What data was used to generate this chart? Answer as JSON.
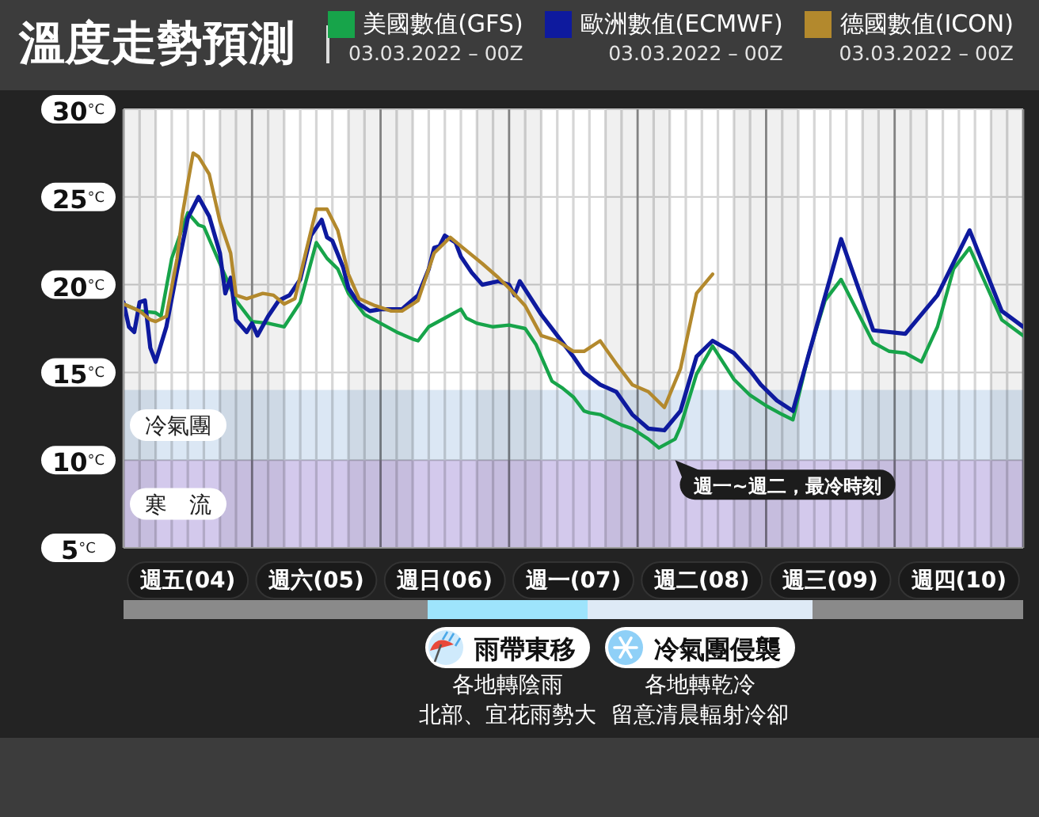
{
  "chart_data": {
    "type": "line",
    "title": "溫度走勢預測",
    "legend": "top",
    "grid": true,
    "marker": "none",
    "line_style": "solid",
    "xlim": [
      "2022-03-04T00:00",
      "2022-03-11T00:00"
    ],
    "xticks": [
      {
        "value": "2022-03-04T00:00",
        "label": null
      },
      {
        "value": "2022-03-04T03:00",
        "label": null
      },
      {
        "value": "2022-03-04T06:00",
        "label": null
      },
      {
        "value": "2022-03-04T09:00",
        "label": null
      },
      {
        "value": "2022-03-04T12:00",
        "label": "週五(04)"
      },
      {
        "value": "2022-03-04T15:00",
        "label": null
      },
      {
        "value": "2022-03-04T18:00",
        "label": null
      },
      {
        "value": "2022-03-04T21:00",
        "label": null
      },
      {
        "value": "2022-03-05T00:00",
        "label": null
      },
      {
        "value": "2022-03-05T03:00",
        "label": null
      },
      {
        "value": "2022-03-05T06:00",
        "label": null
      },
      {
        "value": "2022-03-05T09:00",
        "label": null
      },
      {
        "value": "2022-03-05T12:00",
        "label": "週六(05)"
      },
      {
        "value": "2022-03-05T15:00",
        "label": null
      },
      {
        "value": "2022-03-05T18:00",
        "label": null
      },
      {
        "value": "2022-03-05T21:00",
        "label": null
      },
      {
        "value": "2022-03-06T00:00",
        "label": null
      },
      {
        "value": "2022-03-06T03:00",
        "label": null
      },
      {
        "value": "2022-03-06T06:00",
        "label": null
      },
      {
        "value": "2022-03-06T09:00",
        "label": null
      },
      {
        "value": "2022-03-06T12:00",
        "label": "週日(06)"
      },
      {
        "value": "2022-03-06T15:00",
        "label": null
      },
      {
        "value": "2022-03-06T18:00",
        "label": null
      },
      {
        "value": "2022-03-06T21:00",
        "label": null
      },
      {
        "value": "2022-03-07T00:00",
        "label": null
      },
      {
        "value": "2022-03-07T03:00",
        "label": null
      },
      {
        "value": "2022-03-07T06:00",
        "label": null
      },
      {
        "value": "2022-03-07T09:00",
        "label": null
      },
      {
        "value": "2022-03-07T12:00",
        "label": "週一(07)"
      },
      {
        "value": "2022-03-07T15:00",
        "label": null
      },
      {
        "value": "2022-03-07T18:00",
        "label": null
      },
      {
        "value": "2022-03-07T21:00",
        "label": null
      },
      {
        "value": "2022-03-08T00:00",
        "label": null
      },
      {
        "value": "2022-03-08T03:00",
        "label": null
      },
      {
        "value": "2022-03-08T06:00",
        "label": null
      },
      {
        "value": "2022-03-08T09:00",
        "label": null
      },
      {
        "value": "2022-03-08T12:00",
        "label": "週二(08)"
      },
      {
        "value": "2022-03-08T15:00",
        "label": null
      },
      {
        "value": "2022-03-08T18:00",
        "label": null
      },
      {
        "value": "2022-03-08T21:00",
        "label": null
      },
      {
        "value": "2022-03-09T00:00",
        "label": null
      },
      {
        "value": "2022-03-09T03:00",
        "label": null
      },
      {
        "value": "2022-03-09T06:00",
        "label": null
      },
      {
        "value": "2022-03-09T09:00",
        "label": null
      },
      {
        "value": "2022-03-09T12:00",
        "label": "週三(09)"
      },
      {
        "value": "2022-03-09T15:00",
        "label": null
      },
      {
        "value": "2022-03-09T18:00",
        "label": null
      },
      {
        "value": "2022-03-09T21:00",
        "label": null
      },
      {
        "value": "2022-03-10T00:00",
        "label": null
      },
      {
        "value": "2022-03-10T03:00",
        "label": null
      },
      {
        "value": "2022-03-10T06:00",
        "label": null
      },
      {
        "value": "2022-03-10T09:00",
        "label": null
      },
      {
        "value": "2022-03-10T12:00",
        "label": "週四(10)"
      },
      {
        "value": "2022-03-10T15:00",
        "label": null
      },
      {
        "value": "2022-03-10T18:00",
        "label": null
      },
      {
        "value": "2022-03-10T21:00",
        "label": null
      },
      {
        "value": "2022-03-11T00:00",
        "label": null
      }
    ],
    "ylim": [
      5,
      30
    ],
    "yticks": [
      {
        "value": 5,
        "label": "5°C"
      },
      {
        "value": 10,
        "label": "10°C"
      },
      {
        "value": 15,
        "label": "15°C"
      },
      {
        "value": 20,
        "label": "20°C"
      },
      {
        "value": 25,
        "label": "25°C"
      },
      {
        "value": 30,
        "label": "30°C"
      }
    ],
    "series": [
      {
        "name": "美國數值(GFS)",
        "color": "#17a44a",
        "x": [
          "2022-03-04T00:00",
          "2022-03-04T03:00",
          "2022-03-04T06:00",
          "2022-03-04T07:00",
          "2022-03-04T09:00",
          "2022-03-04T12:00",
          "2022-03-04T14:00",
          "2022-03-04T15:00",
          "2022-03-04T18:00",
          "2022-03-04T21:00",
          "2022-03-05T00:00",
          "2022-03-05T03:00",
          "2022-03-05T06:00",
          "2022-03-05T09:00",
          "2022-03-05T12:00",
          "2022-03-05T14:00",
          "2022-03-05T16:00",
          "2022-03-05T18:00",
          "2022-03-05T21:00",
          "2022-03-06T00:00",
          "2022-03-06T03:00",
          "2022-03-06T06:00",
          "2022-03-06T07:00",
          "2022-03-06T09:00",
          "2022-03-06T12:00",
          "2022-03-06T15:00",
          "2022-03-06T16:00",
          "2022-03-06T18:00",
          "2022-03-06T21:00",
          "2022-03-07T00:00",
          "2022-03-07T03:00",
          "2022-03-07T05:00",
          "2022-03-07T08:00",
          "2022-03-07T10:00",
          "2022-03-07T12:00",
          "2022-03-07T14:00",
          "2022-03-07T15:00",
          "2022-03-07T17:00",
          "2022-03-07T21:00",
          "2022-03-07T23:00",
          "2022-03-08T02:00",
          "2022-03-08T04:00",
          "2022-03-08T07:00",
          "2022-03-08T08:00",
          "2022-03-08T11:00",
          "2022-03-08T14:00",
          "2022-03-08T18:00",
          "2022-03-08T21:00",
          "2022-03-09T00:00",
          "2022-03-09T03:00",
          "2022-03-09T05:00",
          "2022-03-09T08:00",
          "2022-03-09T11:00",
          "2022-03-09T14:00",
          "2022-03-09T20:00",
          "2022-03-09T23:00",
          "2022-03-10T02:00",
          "2022-03-10T05:00",
          "2022-03-10T08:00",
          "2022-03-10T11:00",
          "2022-03-10T14:00",
          "2022-03-10T20:00",
          "2022-03-11T00:00"
        ],
        "values": [
          18.9,
          18.5,
          18.4,
          18.2,
          21.5,
          24.1,
          23.4,
          23.3,
          21.2,
          19.1,
          17.9,
          17.8,
          17.6,
          19.0,
          22.4,
          21.5,
          20.9,
          19.5,
          18.3,
          17.8,
          17.3,
          16.9,
          16.8,
          17.6,
          18.1,
          18.6,
          18.1,
          17.8,
          17.6,
          17.7,
          17.5,
          16.6,
          14.5,
          14.1,
          13.6,
          12.8,
          12.7,
          12.6,
          12.0,
          11.8,
          11.2,
          10.7,
          11.2,
          11.9,
          14.9,
          16.5,
          14.6,
          13.7,
          13.1,
          12.6,
          12.3,
          16.1,
          19.1,
          20.3,
          16.7,
          16.2,
          16.1,
          15.6,
          17.6,
          20.9,
          22.1,
          18.0,
          17.1
        ]
      },
      {
        "name": "歐洲數值(ECMWF)",
        "color": "#0e1a9e",
        "x": [
          "2022-03-04T00:00",
          "2022-03-04T01:00",
          "2022-03-04T02:00",
          "2022-03-04T03:00",
          "2022-03-04T04:00",
          "2022-03-04T05:00",
          "2022-03-04T06:00",
          "2022-03-04T08:00",
          "2022-03-04T10:00",
          "2022-03-04T12:00",
          "2022-03-04T14:00",
          "2022-03-04T16:00",
          "2022-03-04T18:00",
          "2022-03-04T19:00",
          "2022-03-04T20:00",
          "2022-03-04T21:00",
          "2022-03-04T23:00",
          "2022-03-05T00:00",
          "2022-03-05T01:00",
          "2022-03-05T03:00",
          "2022-03-05T05:00",
          "2022-03-05T07:00",
          "2022-03-05T09:00",
          "2022-03-05T11:00",
          "2022-03-05T13:00",
          "2022-03-05T14:00",
          "2022-03-05T15:00",
          "2022-03-05T17:00",
          "2022-03-05T18:00",
          "2022-03-05T20:00",
          "2022-03-05T22:00",
          "2022-03-06T00:00",
          "2022-03-06T04:00",
          "2022-03-06T07:00",
          "2022-03-06T09:00",
          "2022-03-06T10:00",
          "2022-03-06T11:00",
          "2022-03-06T12:00",
          "2022-03-06T14:00",
          "2022-03-06T15:00",
          "2022-03-06T17:00",
          "2022-03-06T19:00",
          "2022-03-06T22:00",
          "2022-03-07T00:00",
          "2022-03-07T01:00",
          "2022-03-07T02:00",
          "2022-03-07T06:00",
          "2022-03-07T09:00",
          "2022-03-07T12:00",
          "2022-03-07T14:00",
          "2022-03-07T17:00",
          "2022-03-07T20:00",
          "2022-03-07T23:00",
          "2022-03-08T02:00",
          "2022-03-08T05:00",
          "2022-03-08T08:00",
          "2022-03-08T11:00",
          "2022-03-08T14:00",
          "2022-03-08T18:00",
          "2022-03-08T21:00",
          "2022-03-08T23:00",
          "2022-03-09T02:00",
          "2022-03-09T05:00",
          "2022-03-09T14:00",
          "2022-03-09T20:00",
          "2022-03-10T02:00",
          "2022-03-10T08:00",
          "2022-03-10T14:00",
          "2022-03-10T20:00",
          "2022-03-11T00:00"
        ],
        "values": [
          19.0,
          17.6,
          17.3,
          19.0,
          19.1,
          16.4,
          15.6,
          17.6,
          20.8,
          23.8,
          25.0,
          23.9,
          21.8,
          19.5,
          20.4,
          18.0,
          17.3,
          17.8,
          17.1,
          18.2,
          19.1,
          19.4,
          20.3,
          22.8,
          23.7,
          22.7,
          22.5,
          21.0,
          19.8,
          18.9,
          18.5,
          18.6,
          18.6,
          19.4,
          20.9,
          22.1,
          22.2,
          22.8,
          22.4,
          21.6,
          20.7,
          20.0,
          20.2,
          20.0,
          19.4,
          20.2,
          18.3,
          17.1,
          15.9,
          15.0,
          14.3,
          13.9,
          12.6,
          11.8,
          11.7,
          12.8,
          15.9,
          16.8,
          16.1,
          15.1,
          14.3,
          13.4,
          12.8,
          22.6,
          17.4,
          17.2,
          19.4,
          23.1,
          18.5,
          17.6
        ]
      },
      {
        "name": "德國數值(ICON)",
        "color": "#b3892d",
        "x": [
          "2022-03-04T00:00",
          "2022-03-04T03:00",
          "2022-03-04T05:00",
          "2022-03-04T06:00",
          "2022-03-04T08:00",
          "2022-03-04T10:00",
          "2022-03-04T11:00",
          "2022-03-04T12:00",
          "2022-03-04T13:00",
          "2022-03-04T14:00",
          "2022-03-04T16:00",
          "2022-03-04T18:00",
          "2022-03-04T20:00",
          "2022-03-04T21:00",
          "2022-03-04T23:00",
          "2022-03-05T02:00",
          "2022-03-05T04:00",
          "2022-03-05T06:00",
          "2022-03-05T08:00",
          "2022-03-05T10:00",
          "2022-03-05T12:00",
          "2022-03-05T14:00",
          "2022-03-05T16:00",
          "2022-03-05T18:00",
          "2022-03-05T20:00",
          "2022-03-05T23:00",
          "2022-03-06T02:00",
          "2022-03-06T04:00",
          "2022-03-06T07:00",
          "2022-03-06T10:00",
          "2022-03-06T13:00",
          "2022-03-06T15:00",
          "2022-03-06T19:00",
          "2022-03-06T22:00",
          "2022-03-07T00:00",
          "2022-03-07T03:00",
          "2022-03-07T06:00",
          "2022-03-07T09:00",
          "2022-03-07T12:00",
          "2022-03-07T14:00",
          "2022-03-07T17:00",
          "2022-03-07T20:00",
          "2022-03-07T23:00",
          "2022-03-08T02:00",
          "2022-03-08T05:00",
          "2022-03-08T08:00",
          "2022-03-08T11:00",
          "2022-03-08T14:00"
        ],
        "values": [
          18.9,
          18.5,
          18.0,
          17.9,
          18.2,
          21.5,
          24.0,
          25.8,
          27.5,
          27.3,
          26.3,
          23.6,
          21.8,
          19.4,
          19.2,
          19.5,
          19.4,
          18.9,
          19.2,
          21.8,
          24.3,
          24.3,
          23.1,
          20.6,
          19.2,
          18.8,
          18.5,
          18.5,
          19.1,
          21.8,
          22.7,
          22.2,
          21.2,
          20.4,
          19.8,
          18.8,
          17.1,
          16.8,
          16.2,
          16.2,
          16.8,
          15.5,
          14.3,
          13.9,
          13.0,
          15.2,
          19.5,
          20.6
        ]
      }
    ],
    "bands": [
      {
        "axis": "x",
        "from": "2022-03-04T00:00",
        "to": "2022-03-04T06:00",
        "color": "#f0f0f0"
      },
      {
        "axis": "x",
        "from": "2022-03-04T18:00",
        "to": "2022-03-05T06:00",
        "color": "#f0f0f0"
      },
      {
        "axis": "x",
        "from": "2022-03-05T18:00",
        "to": "2022-03-06T06:00",
        "color": "#f0f0f0"
      },
      {
        "axis": "x",
        "from": "2022-03-06T18:00",
        "to": "2022-03-07T06:00",
        "color": "#f0f0f0"
      },
      {
        "axis": "x",
        "from": "2022-03-07T18:00",
        "to": "2022-03-08T06:00",
        "color": "#f0f0f0"
      },
      {
        "axis": "x",
        "from": "2022-03-08T18:00",
        "to": "2022-03-09T06:00",
        "color": "#f0f0f0"
      },
      {
        "axis": "x",
        "from": "2022-03-09T18:00",
        "to": "2022-03-10T06:00",
        "color": "#f0f0f0"
      },
      {
        "axis": "x",
        "from": "2022-03-10T18:00",
        "to": "2022-03-11T00:00",
        "color": "#f0f0f0"
      },
      {
        "axis": "y",
        "from": 10,
        "to": 14,
        "label": "冷氣團",
        "color": "#dbe7f4"
      },
      {
        "axis": "y",
        "from": 5,
        "to": 10,
        "label": "寒　流",
        "color": "#d3c9ec"
      }
    ],
    "annotations": [
      "03.03.2022 – 00Z",
      "03.03.2022 – 00Z",
      "03.03.2022 – 00Z",
      {
        "text": "週一~週二，最冷時刻",
        "x": "2022-03-08T07:00",
        "y": 10
      },
      "雨帶東移",
      "各地轉陰雨",
      "北部、宜花雨勢大",
      "冷氣團侵襲",
      "各地轉乾冷",
      "留意清晨輻射冷卻"
    ]
  }
}
